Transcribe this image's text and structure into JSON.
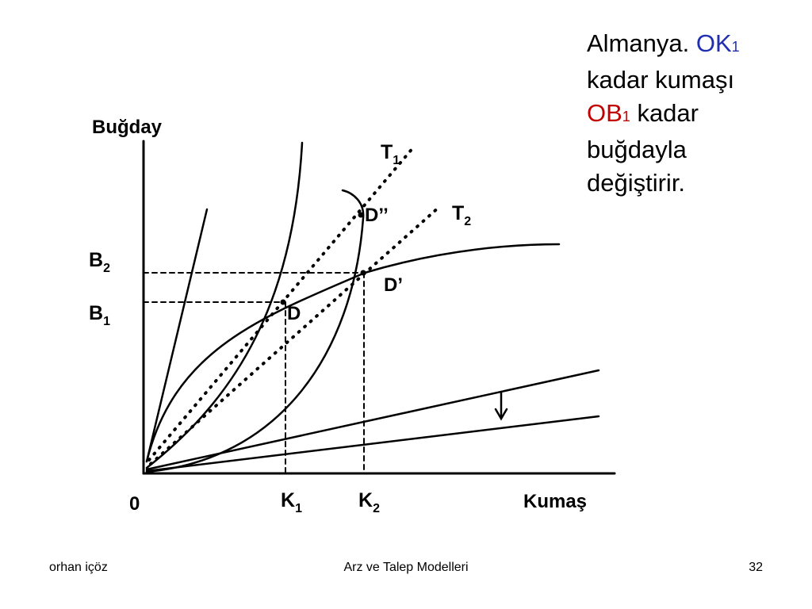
{
  "diagram": {
    "y_axis_label": "Buğday",
    "x_axis_label": "Kumaş",
    "origin_label": "0",
    "b2": {
      "base": "B",
      "sub": "2"
    },
    "b1": {
      "base": "B",
      "sub": "1"
    },
    "k1": {
      "base": "K",
      "sub": "1"
    },
    "k2": {
      "base": "K",
      "sub": "2"
    },
    "t1": {
      "base": "T",
      "sub": "1"
    },
    "t2": {
      "base": "T",
      "sub": "2"
    },
    "point_d": "D",
    "point_d_prime": "D’",
    "point_d_double": "D’’"
  },
  "explanation": {
    "part1": "Almanya.",
    "ok_base": "OK",
    "ok_sub": "1",
    "part2": "kadar kumaşı",
    "ob_base": "OB",
    "ob_sub": "1",
    "part3": "kadar buğdayla değiştirir."
  },
  "footer": {
    "author": "orhan içöz",
    "title": "Arz ve Talep Modelleri",
    "page": "32"
  },
  "colors": {
    "highlight_blue": "#1f2fb0",
    "highlight_red": "#c00000"
  }
}
